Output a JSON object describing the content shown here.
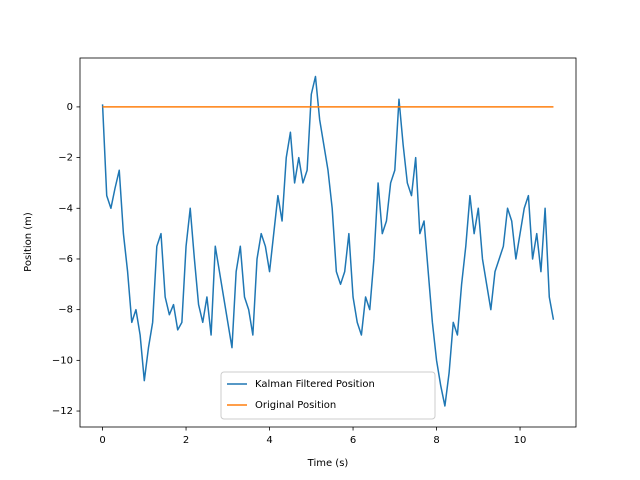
{
  "chart_data": {
    "type": "line",
    "xlabel": "Time (s)",
    "ylabel": "Position (m)",
    "xlim": [
      -0.54,
      11.34
    ],
    "ylim": [
      -12.63,
      1.93
    ],
    "xticks": [
      0,
      2,
      4,
      6,
      8,
      10
    ],
    "yticks": [
      {
        "value": -12,
        "label": "−12"
      },
      {
        "value": -10,
        "label": "−10"
      },
      {
        "value": -8,
        "label": "−8"
      },
      {
        "value": -6,
        "label": "−6"
      },
      {
        "value": -4,
        "label": "−4"
      },
      {
        "value": -2,
        "label": "−2"
      },
      0
    ],
    "legend": "lower center",
    "series": [
      {
        "name": "Kalman Filtered Position",
        "color": "#1f77b4",
        "x": [
          0.0,
          0.1,
          0.2,
          0.3,
          0.4,
          0.5,
          0.6,
          0.7,
          0.8,
          0.9,
          1.0,
          1.1,
          1.2,
          1.3,
          1.4,
          1.5,
          1.6,
          1.7,
          1.8,
          1.9,
          2.0,
          2.1,
          2.2,
          2.3,
          2.4,
          2.5,
          2.6,
          2.7,
          2.8,
          2.9,
          3.0,
          3.1,
          3.2,
          3.3,
          3.4,
          3.5,
          3.6,
          3.7,
          3.8,
          3.9,
          4.0,
          4.1,
          4.2,
          4.3,
          4.4,
          4.5,
          4.6,
          4.7,
          4.8,
          4.9,
          5.0,
          5.1,
          5.2,
          5.3,
          5.4,
          5.5,
          5.6,
          5.7,
          5.8,
          5.9,
          6.0,
          6.1,
          6.2,
          6.3,
          6.4,
          6.5,
          6.6,
          6.7,
          6.8,
          6.9,
          7.0,
          7.1,
          7.2,
          7.3,
          7.4,
          7.5,
          7.6,
          7.7,
          7.8,
          7.9,
          8.0,
          8.1,
          8.2,
          8.3,
          8.4,
          8.5,
          8.6,
          8.7,
          8.8,
          8.9,
          9.0,
          9.1,
          9.2,
          9.3,
          9.4,
          9.5,
          9.6,
          9.7,
          9.8,
          9.9,
          10.0,
          10.1,
          10.2,
          10.3,
          10.4,
          10.5,
          10.6,
          10.7,
          10.8
        ],
        "values": [
          0.1,
          -3.5,
          -4.0,
          -3.2,
          -2.5,
          -5.0,
          -6.5,
          -8.5,
          -8.0,
          -9.0,
          -10.8,
          -9.5,
          -8.5,
          -5.5,
          -5.0,
          -7.5,
          -8.2,
          -7.8,
          -8.8,
          -8.5,
          -5.5,
          -4.0,
          -6.0,
          -7.8,
          -8.5,
          -7.5,
          -9.0,
          -5.5,
          -6.5,
          -7.5,
          -8.5,
          -9.5,
          -6.5,
          -5.5,
          -7.5,
          -8.0,
          -9.0,
          -6.0,
          -5.0,
          -5.5,
          -6.5,
          -5.0,
          -3.5,
          -4.5,
          -2.0,
          -1.0,
          -3.0,
          -2.0,
          -3.0,
          -2.5,
          0.5,
          1.2,
          -0.5,
          -1.5,
          -2.5,
          -4.0,
          -6.5,
          -7.0,
          -6.5,
          -5.0,
          -7.5,
          -8.5,
          -9.0,
          -7.5,
          -8.0,
          -6.0,
          -3.0,
          -5.0,
          -4.5,
          -3.0,
          -2.5,
          0.3,
          -1.5,
          -3.0,
          -3.5,
          -2.0,
          -5.0,
          -4.5,
          -6.5,
          -8.5,
          -10.0,
          -11.0,
          -11.8,
          -10.5,
          -8.5,
          -9.0,
          -7.0,
          -5.5,
          -3.5,
          -5.0,
          -4.0,
          -6.0,
          -7.0,
          -8.0,
          -6.5,
          -6.0,
          -5.5,
          -4.0,
          -4.5,
          -6.0,
          -5.0,
          -4.0,
          -3.5,
          -6.0,
          -5.0,
          -6.5,
          -4.0,
          -7.5,
          -8.4
        ]
      },
      {
        "name": "Original Position",
        "color": "#ff7f0e",
        "x": [
          0,
          10.8
        ],
        "values": [
          0,
          0
        ]
      }
    ]
  }
}
